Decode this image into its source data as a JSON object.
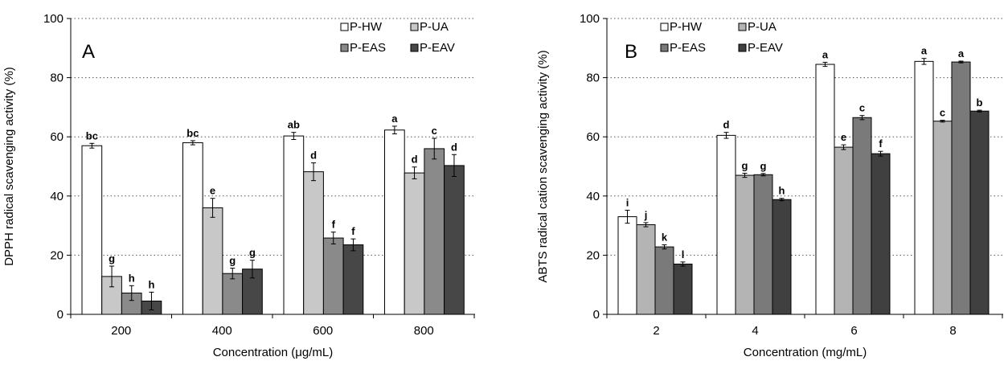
{
  "chart_data": [
    {
      "type": "bar",
      "panel_label": "A",
      "xlabel": "Concentration (μg/mL)",
      "ylabel": "DPPH radical scavenging activity (%)",
      "ylim": [
        0,
        100
      ],
      "yticks": [
        "0",
        "20",
        "40",
        "60",
        "80",
        "100"
      ],
      "grid": "horizontal dotted",
      "legend_position": "top-right",
      "categories": [
        "200",
        "400",
        "600",
        "800"
      ],
      "series": [
        {
          "name": "P-HW",
          "color": "#ffffff",
          "values": [
            57,
            58,
            60.3,
            62.3
          ],
          "errors": [
            0.8,
            0.7,
            1.2,
            1.3
          ],
          "labels": [
            "bc",
            "bc",
            "ab",
            "a"
          ]
        },
        {
          "name": "P-UA",
          "color": "#c8c8c8",
          "values": [
            12.8,
            36,
            48.2,
            47.8
          ],
          "errors": [
            3.5,
            3.2,
            3.0,
            2.0
          ],
          "labels": [
            "g",
            "e",
            "d",
            "d"
          ]
        },
        {
          "name": "P-EAS",
          "color": "#8a8a8a",
          "values": [
            7.2,
            13.8,
            25.8,
            56
          ],
          "errors": [
            2.5,
            1.8,
            2.0,
            3.5
          ],
          "labels": [
            "h",
            "g",
            "f",
            "c"
          ]
        },
        {
          "name": "P-EAV",
          "color": "#474747",
          "values": [
            4.5,
            15.3,
            23.5,
            50.3
          ],
          "errors": [
            3.0,
            3.0,
            2.0,
            3.7
          ],
          "labels": [
            "h",
            "g",
            "f",
            "d"
          ]
        }
      ]
    },
    {
      "type": "bar",
      "panel_label": "B",
      "xlabel": "Concentration (mg/mL)",
      "ylabel": "ABTS radical cation scavenging activity (%)",
      "ylim": [
        0,
        100
      ],
      "yticks": [
        "0",
        "20",
        "40",
        "60",
        "80",
        "100"
      ],
      "grid": "horizontal dotted",
      "legend_position": "top-left",
      "categories": [
        "2",
        "4",
        "6",
        "8"
      ],
      "series": [
        {
          "name": "P-HW",
          "color": "#ffffff",
          "values": [
            33,
            60.5,
            84.5,
            85.5
          ],
          "errors": [
            2.2,
            1.0,
            0.7,
            1.0
          ],
          "labels": [
            "i",
            "d",
            "a",
            "a"
          ]
        },
        {
          "name": "P-UA",
          "color": "#b4b4b4",
          "values": [
            30.3,
            47,
            56.5,
            65.3
          ],
          "errors": [
            0.7,
            0.7,
            0.8,
            0.3
          ],
          "labels": [
            "j",
            "g",
            "e",
            "c"
          ]
        },
        {
          "name": "P-EAS",
          "color": "#7a7a7a",
          "values": [
            22.8,
            47.2,
            66.5,
            85.3
          ],
          "errors": [
            0.7,
            0.4,
            0.7,
            0.3
          ],
          "labels": [
            "k",
            "g",
            "c",
            "a"
          ]
        },
        {
          "name": "P-EAV",
          "color": "#404040",
          "values": [
            17,
            38.8,
            54.3,
            68.7
          ],
          "errors": [
            0.7,
            0.4,
            0.8,
            0.3
          ],
          "labels": [
            "l",
            "h",
            "f",
            "b"
          ]
        }
      ]
    }
  ]
}
